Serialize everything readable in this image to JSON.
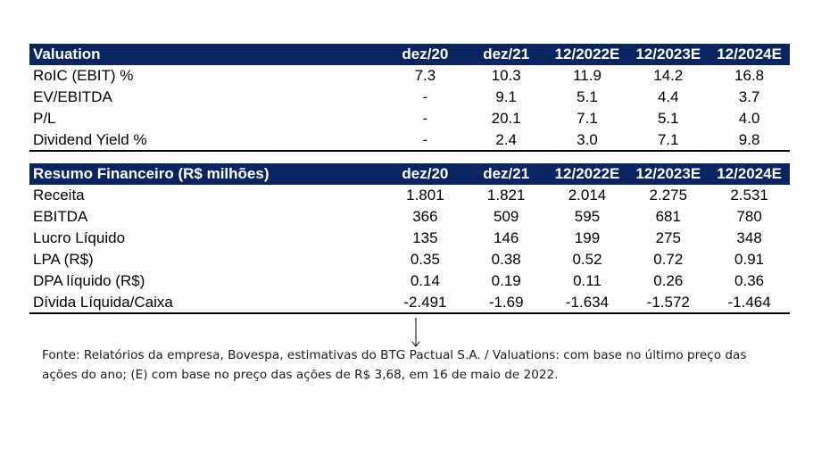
{
  "valuation": {
    "header": [
      "Valuation",
      "dez/20",
      "dez/21",
      "12/2022E",
      "12/2023E",
      "12/2024E"
    ],
    "rows": [
      {
        "label": "RoIC (EBIT) %",
        "values": [
          "7.3",
          "10.3",
          "11.9",
          "14.2",
          "16.8"
        ]
      },
      {
        "label": "EV/EBITDA",
        "values": [
          "-",
          "9.1",
          "5.1",
          "4.4",
          "3.7"
        ]
      },
      {
        "label": "P/L",
        "values": [
          "-",
          "20.1",
          "7.1",
          "5.1",
          "4.0"
        ]
      },
      {
        "label": "Dividend Yield %",
        "values": [
          "-",
          "2.4",
          "3.0",
          "7.1",
          "9.8"
        ]
      }
    ]
  },
  "resumo": {
    "header": [
      "Resumo Financeiro (R$ milhões)",
      "dez/20",
      "dez/21",
      "12/2022E",
      "12/2023E",
      "12/2024E"
    ],
    "rows": [
      {
        "label": "Receita",
        "values": [
          "1.801",
          "1.821",
          "2.014",
          "2.275",
          "2.531"
        ]
      },
      {
        "label": "EBITDA",
        "values": [
          "366",
          "509",
          "595",
          "681",
          "780"
        ]
      },
      {
        "label": "Lucro Líquido",
        "values": [
          "135",
          "146",
          "199",
          "275",
          "348"
        ]
      },
      {
        "label": "LPA (R$)",
        "values": [
          "0.35",
          "0.38",
          "0.52",
          "0.72",
          "0.91"
        ]
      },
      {
        "label": "DPA líquido (R$)",
        "values": [
          "0.14",
          "0.19",
          "0.11",
          "0.26",
          "0.36"
        ]
      },
      {
        "label": "Dívida Líquida/Caixa",
        "values": [
          "-2.491",
          "-1.69",
          "-1.634",
          "-1.572",
          "-1.464"
        ]
      }
    ]
  },
  "footnote": {
    "line1": "Fonte: Relatórios da empresa, Bovespa, estimativas do BTG Pactual S.A. / Valuations: com base no último preço das",
    "line2": "ações do ano; (E) com base no preço das ações de R$ 3,68, em 16 de maio de 2022."
  },
  "colors": {
    "header_bg": "#0b2560",
    "header_text": "#ffffff"
  }
}
